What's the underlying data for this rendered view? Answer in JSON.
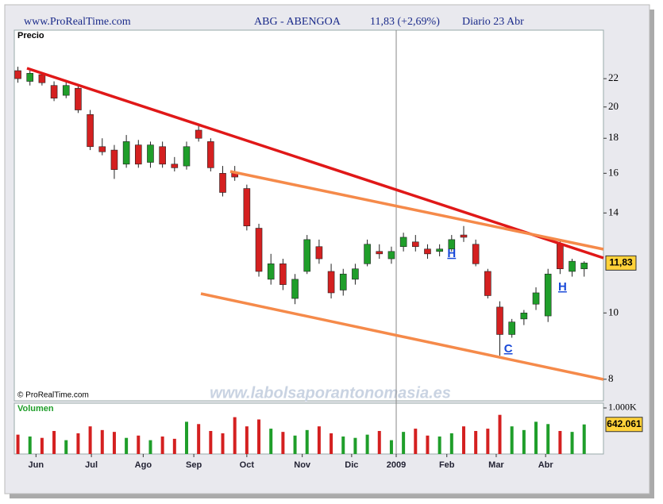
{
  "header": {
    "site": "www.ProRealTime.com",
    "symbol": "ABG - ABENGOA",
    "quote": "11,83 (+2,69%)",
    "period": "Diario  23 Abr"
  },
  "watermark": "www.labolsaporantonomasia.es",
  "copyright": "© ProRealTime.com",
  "chart_data": [
    {
      "type": "candlestick",
      "ylabel": "Precio",
      "log_scale": true,
      "x": [
        0,
        1,
        2,
        3,
        4,
        5,
        6,
        7,
        8,
        9,
        10,
        11,
        12,
        13,
        14,
        15,
        16,
        17,
        18,
        19,
        20,
        21,
        22,
        23,
        24,
        25,
        26,
        27,
        28,
        29,
        30,
        31,
        32,
        33,
        34,
        35,
        36,
        37,
        38,
        39,
        40,
        41,
        42,
        43,
        44,
        45,
        46,
        47
      ],
      "open": [
        22.6,
        21.8,
        22.3,
        21.5,
        20.8,
        21.3,
        19.5,
        17.5,
        17.3,
        16.5,
        17.6,
        16.6,
        17.5,
        16.5,
        16.4,
        18.5,
        17.8,
        16.0,
        16.0,
        15.2,
        13.3,
        11.2,
        11.8,
        10.5,
        11.5,
        12.5,
        11.5,
        10.8,
        11.2,
        11.8,
        12.3,
        12.0,
        12.5,
        12.7,
        12.4,
        12.3,
        12.4,
        13.0,
        12.6,
        11.5,
        10.2,
        9.3,
        9.8,
        10.3,
        9.9,
        12.6,
        11.5,
        11.6
      ],
      "high": [
        22.9,
        22.6,
        22.5,
        21.8,
        21.9,
        21.5,
        19.8,
        18.0,
        17.6,
        18.2,
        17.9,
        17.8,
        17.8,
        16.9,
        17.8,
        18.9,
        18.0,
        16.4,
        16.4,
        15.4,
        13.5,
        12.2,
        12.0,
        11.4,
        13.0,
        12.8,
        11.8,
        11.6,
        11.8,
        12.8,
        12.6,
        12.5,
        13.1,
        13.0,
        12.6,
        12.6,
        13.0,
        13.4,
        12.8,
        11.6,
        10.4,
        9.8,
        10.1,
        10.9,
        11.6,
        12.8,
        12.0,
        11.9
      ],
      "low": [
        21.7,
        21.5,
        21.5,
        20.4,
        20.6,
        19.6,
        17.3,
        17.0,
        15.7,
        16.3,
        16.3,
        16.3,
        16.3,
        16.1,
        16.2,
        17.8,
        16.1,
        14.8,
        15.6,
        13.2,
        11.3,
        11.0,
        10.8,
        10.3,
        11.4,
        11.8,
        10.5,
        10.6,
        11.0,
        11.7,
        12.0,
        11.8,
        12.3,
        12.3,
        12.0,
        12.1,
        12.3,
        12.7,
        11.7,
        10.5,
        8.66,
        9.2,
        9.6,
        10.1,
        9.7,
        11.4,
        11.3,
        11.3
      ],
      "close": [
        22.0,
        22.4,
        21.7,
        20.6,
        21.5,
        19.8,
        17.5,
        17.2,
        16.2,
        17.8,
        16.5,
        17.6,
        16.5,
        16.3,
        17.5,
        18.0,
        16.3,
        15.0,
        15.8,
        13.4,
        11.5,
        11.8,
        11.0,
        11.2,
        12.8,
        12.0,
        10.7,
        11.4,
        11.6,
        12.6,
        12.2,
        12.3,
        12.9,
        12.5,
        12.2,
        12.4,
        12.8,
        12.9,
        11.8,
        10.6,
        9.3,
        9.7,
        10.0,
        10.7,
        11.4,
        11.6,
        11.9,
        11.83
      ],
      "up_color": "#1f9e2a",
      "down_color": "#d42020",
      "xlim": [
        -0.3,
        48.6
      ],
      "ylim": [
        7.44,
        25.9
      ],
      "yticks": [
        8,
        10,
        14,
        16,
        18,
        20,
        22
      ],
      "last_label": "11,83",
      "annotations": [
        {
          "text": "H",
          "x": 36,
          "y": 12.2
        },
        {
          "text": "H",
          "x": 45.2,
          "y": 10.9
        },
        {
          "text": "C",
          "x": 40.7,
          "y": 8.85
        }
      ]
    },
    {
      "type": "bar",
      "ylabel": "Volumen",
      "values": [
        420,
        380,
        350,
        500,
        300,
        450,
        600,
        520,
        480,
        350,
        400,
        300,
        380,
        330,
        700,
        650,
        500,
        450,
        800,
        600,
        750,
        550,
        480,
        400,
        520,
        600,
        450,
        380,
        350,
        420,
        500,
        300,
        480,
        550,
        400,
        380,
        450,
        600,
        500,
        550,
        850,
        600,
        520,
        700,
        650,
        500,
        480,
        642.061
      ],
      "last_label": "642.061",
      "xlim": [
        -0.3,
        48.6
      ],
      "ylim": [
        0,
        1103
      ],
      "yticks": [
        {
          "value": 1000,
          "label": "1.000K"
        }
      ],
      "xticks": [
        {
          "value": 1.5,
          "label": "Jun"
        },
        {
          "value": 6.1,
          "label": "Jul"
        },
        {
          "value": 10.4,
          "label": "Ago"
        },
        {
          "value": 14.6,
          "label": "Sep"
        },
        {
          "value": 19.0,
          "label": "Oct"
        },
        {
          "value": 23.6,
          "label": "Nov"
        },
        {
          "value": 27.7,
          "label": "Dic"
        },
        {
          "value": 31.4,
          "label": "2009"
        },
        {
          "value": 35.6,
          "label": "Feb"
        },
        {
          "value": 39.7,
          "label": "Mar"
        },
        {
          "value": 43.8,
          "label": "Abr"
        }
      ]
    }
  ]
}
